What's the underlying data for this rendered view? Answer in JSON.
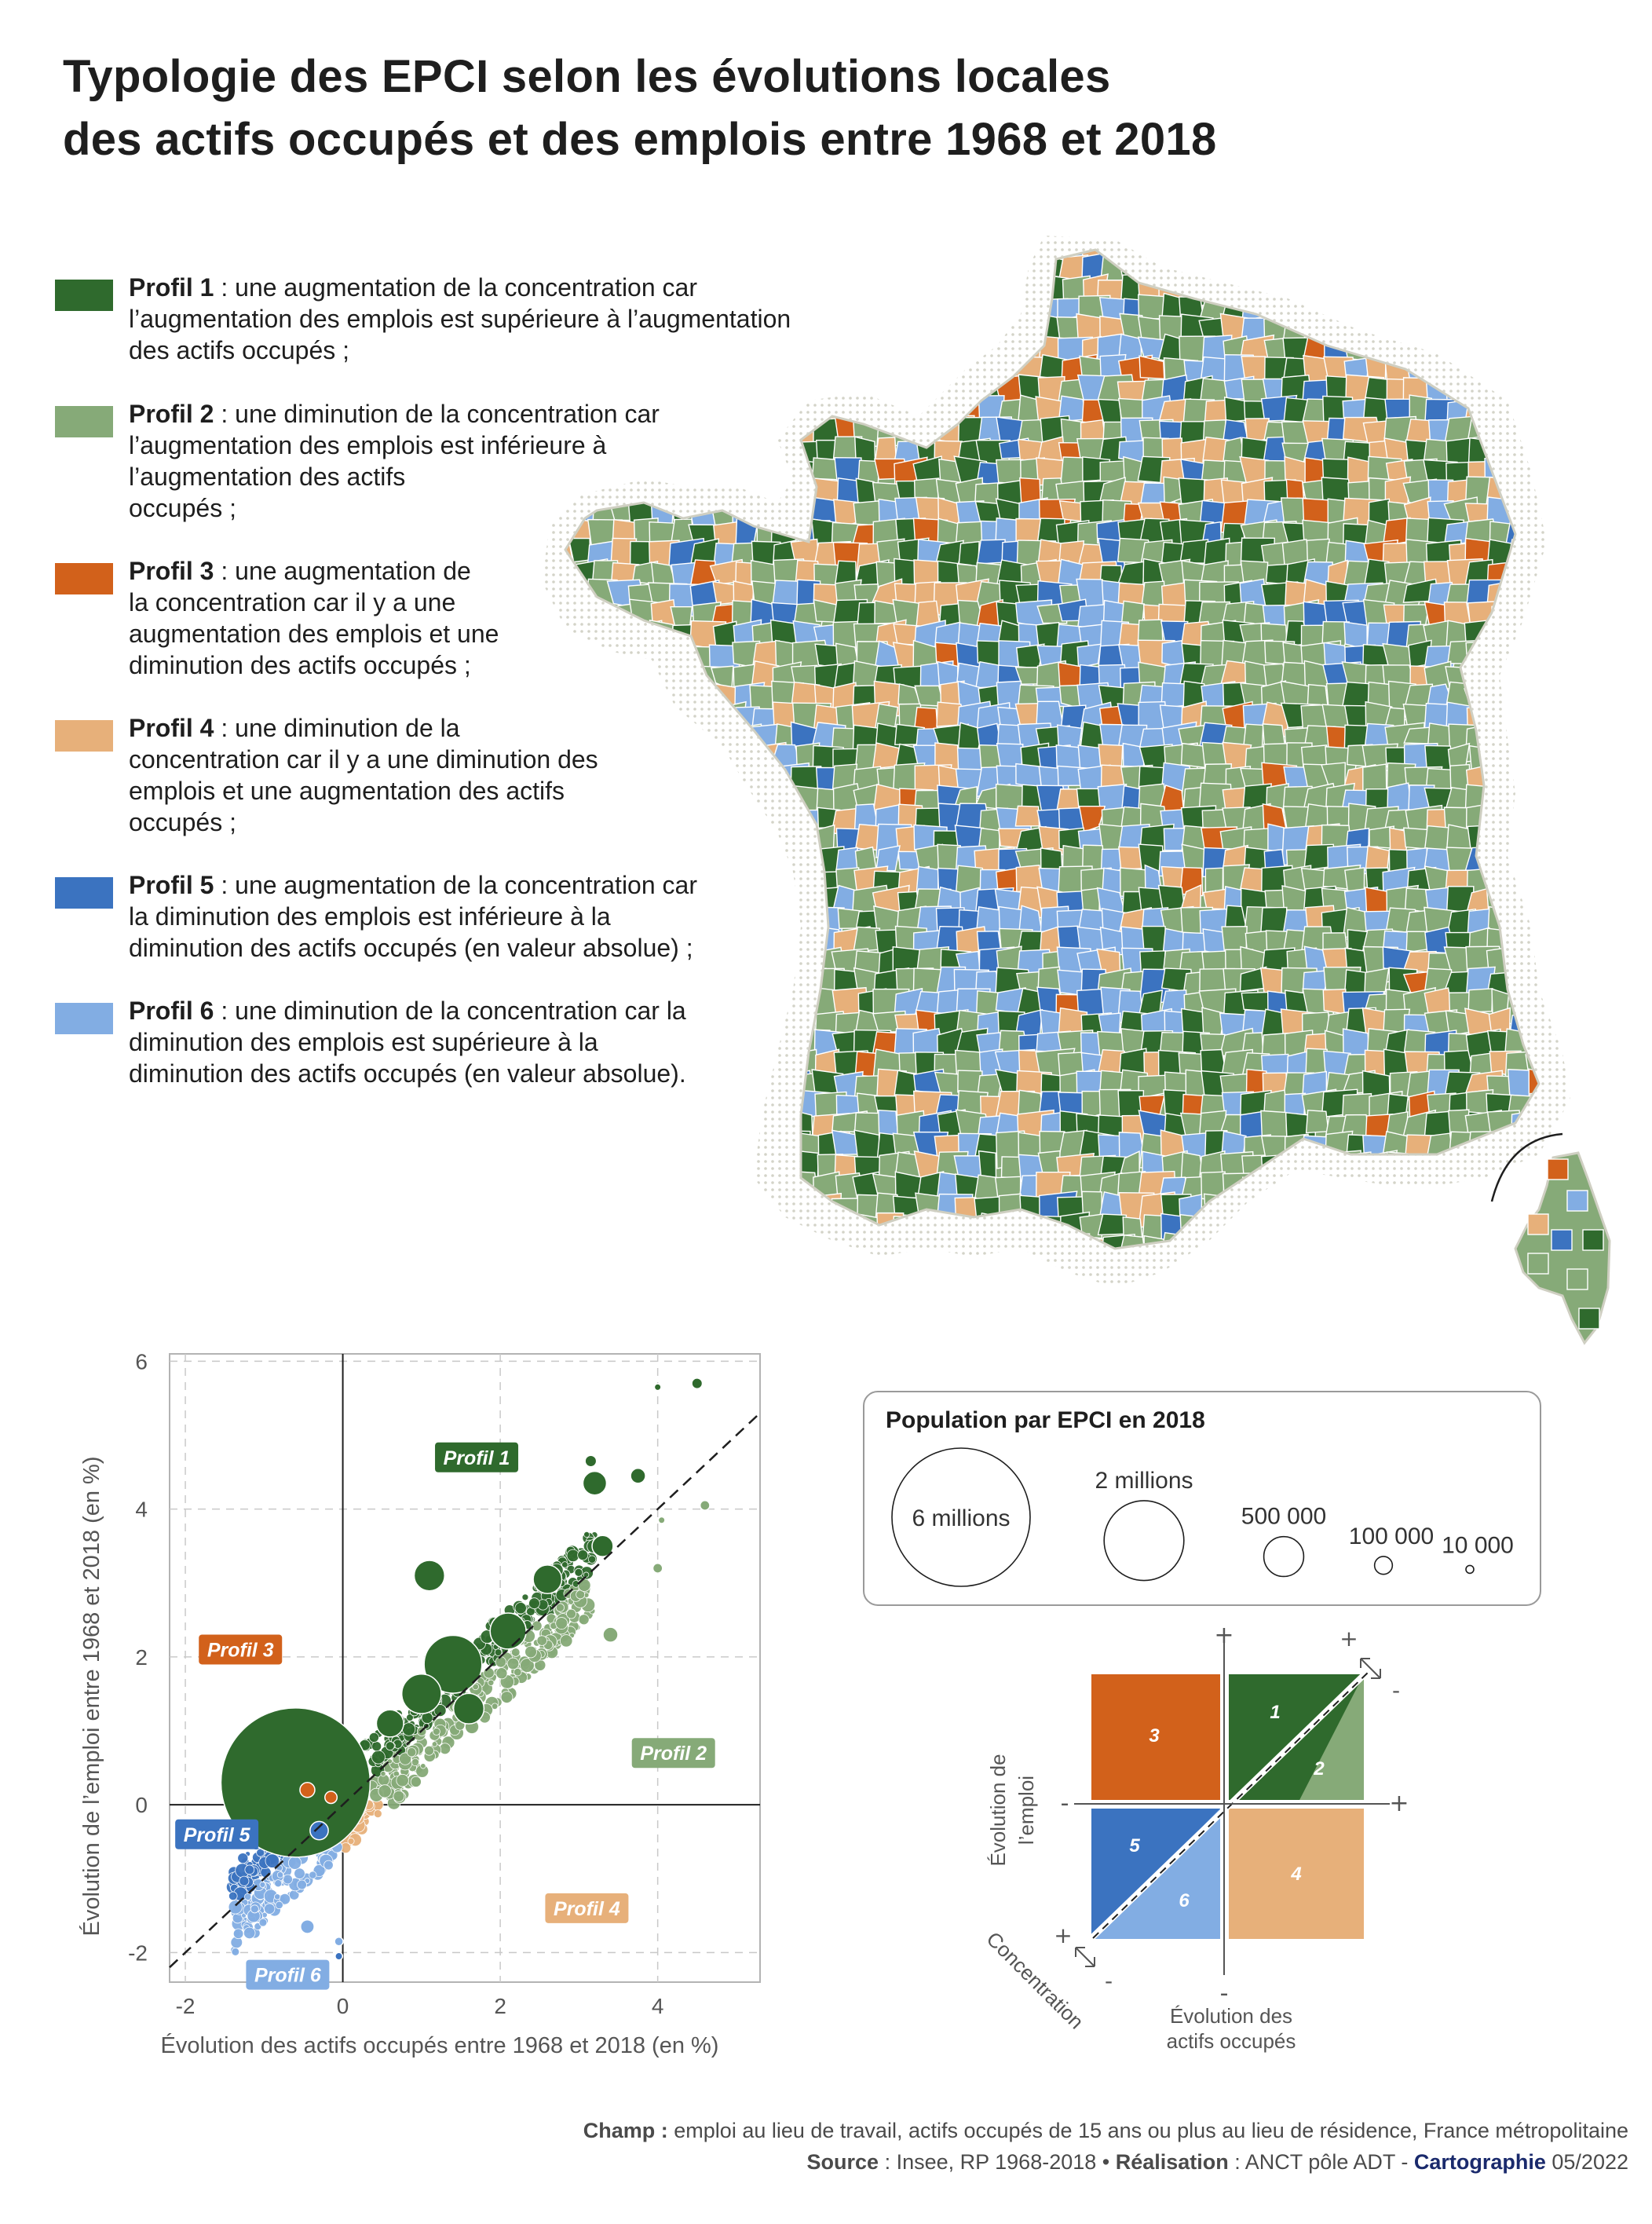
{
  "title": {
    "line1": "Typologie des EPCI selon les évolutions locales",
    "line2": "des actifs occupés et des emplois entre 1968 et 2018"
  },
  "colors": {
    "profil1": "#2f6a2d",
    "profil2": "#86aa78",
    "profil3": "#d2611b",
    "profil4": "#e7b07a",
    "profil5": "#3b73c0",
    "profil6": "#82ade3",
    "outline": "#ffffff",
    "dots": "#d9d9cf"
  },
  "legend": [
    {
      "name": "Profil 1",
      "text": " : une augmentation de la concentration car",
      "lines": [
        "l’augmentation des emplois est supérieure à l’augmentation",
        "des actifs occupés ;"
      ]
    },
    {
      "name": "Profil 2",
      "text": " : une diminution de la concentration car",
      "lines": [
        "l’augmentation des emplois est inférieure à",
        "l’augmentation des actifs",
        "occupés ;"
      ]
    },
    {
      "name": "Profil 3",
      "text": " : une augmentation de",
      "lines": [
        "la concentration car il y a une",
        "augmentation des emplois et une",
        "diminution des actifs occupés ;"
      ]
    },
    {
      "name": "Profil 4",
      "text": " : une diminution de la",
      "lines": [
        "concentration car il y a une diminution des",
        "emplois et une augmentation des actifs",
        "occupés ;"
      ]
    },
    {
      "name": "Profil 5",
      "text": " : une augmentation de la concentration car",
      "lines": [
        "la diminution des emplois est inférieure à la",
        "diminution des actifs occupés (en valeur absolue) ;"
      ]
    },
    {
      "name": "Profil 6",
      "text": " : une diminution de la concentration car la",
      "lines": [
        "diminution des emplois est supérieure à la",
        "diminution des actifs occupés (en valeur absolue)."
      ]
    }
  ],
  "chart_data": {
    "type": "scatter",
    "xlabel": "Évolution des actifs occupés entre 1968 et 2018 (en %)",
    "ylabel": "Évolution de l’emploi entre 1968 et 2018 (en %)",
    "xlim": [
      -2.2,
      5.3
    ],
    "ylim": [
      -2.4,
      6.1
    ],
    "xticks": [
      "-2",
      "0",
      "2",
      "4"
    ],
    "yticks": [
      "-2",
      "0",
      "2",
      "4",
      "6"
    ],
    "grid": true,
    "diagonal": "y = x (dashed)",
    "region_labels": [
      {
        "text": "Profil 1",
        "x": 1.7,
        "y": 4.7,
        "profile": 1
      },
      {
        "text": "Profil 2",
        "x": 4.2,
        "y": 0.7,
        "profile": 2
      },
      {
        "text": "Profil 3",
        "x": -1.3,
        "y": 2.1,
        "profile": 3
      },
      {
        "text": "Profil 4",
        "x": 3.1,
        "y": -1.4,
        "profile": 4
      },
      {
        "text": "Profil 5",
        "x": -1.6,
        "y": -0.4,
        "profile": 5
      },
      {
        "text": "Profil 6",
        "x": -0.7,
        "y": -2.3,
        "profile": 6
      }
    ],
    "highlighted_points": [
      {
        "x": -0.6,
        "y": 0.3,
        "pop": 6000000,
        "profile": 1
      },
      {
        "x": 1.4,
        "y": 1.9,
        "pop": 900000,
        "profile": 1
      },
      {
        "x": 1.1,
        "y": 3.1,
        "pop": 250000,
        "profile": 1
      },
      {
        "x": 2.1,
        "y": 2.35,
        "pop": 350000,
        "profile": 1
      },
      {
        "x": 3.3,
        "y": 3.5,
        "pop": 120000,
        "profile": 1
      },
      {
        "x": 3.2,
        "y": 4.35,
        "pop": 150000,
        "profile": 1
      },
      {
        "x": 2.6,
        "y": 3.05,
        "pop": 220000,
        "profile": 1
      },
      {
        "x": 1.0,
        "y": 1.5,
        "pop": 420000,
        "profile": 1
      },
      {
        "x": 0.6,
        "y": 1.1,
        "pop": 200000,
        "profile": 1
      },
      {
        "x": 1.6,
        "y": 1.3,
        "pop": 250000,
        "profile": 1
      },
      {
        "x": 4.5,
        "y": 5.7,
        "pop": 30000,
        "profile": 1
      },
      {
        "x": 4.0,
        "y": 5.65,
        "pop": 12000,
        "profile": 1
      },
      {
        "x": 3.15,
        "y": 4.65,
        "pop": 35000,
        "profile": 1
      },
      {
        "x": 3.75,
        "y": 4.45,
        "pop": 60000,
        "profile": 1
      },
      {
        "x": 4.6,
        "y": 4.05,
        "pop": 25000,
        "profile": 2
      },
      {
        "x": 4.05,
        "y": 3.85,
        "pop": 12000,
        "profile": 2
      },
      {
        "x": 4.0,
        "y": 3.2,
        "pop": 25000,
        "profile": 2
      },
      {
        "x": 3.4,
        "y": 2.3,
        "pop": 60000,
        "profile": 2
      },
      {
        "x": -0.45,
        "y": 0.2,
        "pop": 60000,
        "profile": 3
      },
      {
        "x": -0.15,
        "y": 0.1,
        "pop": 40000,
        "profile": 3
      },
      {
        "x": -0.3,
        "y": -0.35,
        "pop": 90000,
        "profile": 5
      },
      {
        "x": -0.45,
        "y": -1.65,
        "pop": 50000,
        "profile": 6
      },
      {
        "x": -0.05,
        "y": -1.85,
        "pop": 20000,
        "profile": 6
      },
      {
        "x": -0.05,
        "y": -2.05,
        "pop": 15000,
        "profile": 5
      }
    ]
  },
  "population_legend": {
    "title": "Population par EPCI en 2018",
    "items": [
      {
        "label": "6 millions",
        "value": 6000000
      },
      {
        "label": "2 millions",
        "value": 2000000
      },
      {
        "label": "500 000",
        "value": 500000
      },
      {
        "label": "100 000",
        "value": 100000
      },
      {
        "label": "10 000",
        "value": 10000
      }
    ]
  },
  "quadrant_diagram": {
    "plus": "+",
    "minus": "-",
    "cells": [
      "3",
      "1",
      "2",
      "5",
      "6",
      "4"
    ],
    "y_axis_label": [
      "Évolution de",
      "l’emploi"
    ],
    "x_axis_label": [
      "Évolution des",
      "actifs occupés"
    ],
    "diagonal_label": "Concentration"
  },
  "footer": {
    "champ_label": "Champ :",
    "champ_text": " emploi au lieu de travail, actifs occupés de 15 ans ou plus au lieu de résidence, France métropolitaine",
    "source_label": "Source",
    "source_text": " : Insee, RP 1968-2018 • ",
    "realisation_label": "Réalisation",
    "realisation_text": " : ANCT pôle ADT - ",
    "cartographie_label": "Cartographie",
    "date": " 05/2022"
  }
}
